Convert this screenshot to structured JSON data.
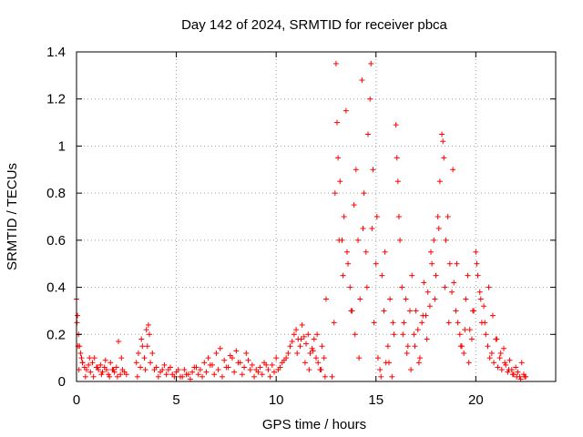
{
  "chart_data": {
    "type": "scatter",
    "title": "Day 142 of 2024, SRMTID for receiver pbca",
    "xlabel": "GPS time / hours",
    "ylabel": "SRMTID / TECUs",
    "xlim": [
      0,
      24
    ],
    "ylim": [
      0,
      1.4
    ],
    "xticks": [
      0,
      5,
      10,
      15,
      20
    ],
    "xtick_labels": [
      "0",
      "5",
      "10",
      "15",
      "20"
    ],
    "yticks": [
      0,
      0.2,
      0.4,
      0.6,
      0.8,
      1.0,
      1.2,
      1.4
    ],
    "ytick_labels": [
      "0",
      "0.2",
      "0.4",
      "0.6",
      "0.8",
      "1",
      "1.2",
      "1.4"
    ],
    "grid": true,
    "marker": "+",
    "color": "#ff0000",
    "series": [
      {
        "name": "SRMTID",
        "x": [
          0.0,
          0.05,
          0.1,
          0.15,
          0.2,
          0.25,
          0.3,
          0.4,
          0.5,
          0.6,
          0.7,
          0.8,
          0.9,
          1.0,
          1.1,
          1.2,
          1.3,
          1.4,
          1.5,
          1.6,
          1.7,
          1.8,
          1.9,
          2.0,
          2.1,
          2.2,
          2.3,
          2.4,
          2.5,
          3.0,
          3.1,
          3.2,
          3.3,
          3.4,
          3.5,
          3.6,
          3.7,
          3.8,
          3.9,
          4.0,
          4.2,
          4.4,
          4.6,
          4.8,
          5.0,
          5.2,
          5.4,
          5.6,
          5.8,
          6.0,
          6.2,
          6.4,
          6.6,
          6.8,
          7.0,
          7.2,
          7.4,
          7.6,
          7.8,
          8.0,
          8.2,
          8.4,
          8.6,
          8.8,
          9.0,
          9.2,
          9.4,
          9.6,
          9.8,
          10.0,
          10.2,
          10.4,
          10.6,
          10.8,
          10.9,
          11.0,
          11.1,
          11.2,
          11.3,
          11.4,
          11.5,
          11.6,
          11.7,
          11.8,
          11.9,
          12.0,
          12.1,
          12.2,
          12.3,
          12.4,
          12.5,
          12.8,
          12.9,
          13.0,
          13.05,
          13.1,
          13.2,
          13.3,
          13.4,
          13.5,
          13.6,
          13.7,
          13.8,
          13.9,
          14.0,
          14.1,
          14.2,
          14.3,
          14.4,
          14.5,
          14.6,
          14.7,
          14.75,
          14.8,
          14.9,
          15.0,
          15.1,
          15.2,
          15.3,
          15.4,
          15.5,
          15.6,
          15.7,
          15.8,
          15.9,
          16.0,
          16.05,
          16.1,
          16.2,
          16.3,
          16.4,
          16.5,
          16.6,
          16.7,
          16.8,
          16.9,
          17.0,
          17.1,
          17.2,
          17.3,
          17.4,
          17.5,
          17.6,
          17.7,
          17.8,
          17.9,
          18.0,
          18.1,
          18.2,
          18.3,
          18.35,
          18.4,
          18.5,
          18.6,
          18.7,
          18.8,
          18.9,
          19.0,
          19.1,
          19.2,
          19.3,
          19.4,
          19.5,
          19.6,
          19.7,
          19.8,
          19.9,
          20.0,
          20.1,
          20.2,
          20.3,
          20.4,
          20.5,
          20.6,
          20.7,
          20.8,
          20.9,
          21.0,
          21.1,
          21.2,
          21.3,
          21.4,
          21.5,
          21.6,
          21.7,
          21.8,
          21.9,
          22.0,
          22.1,
          22.2,
          22.3,
          22.4,
          22.5,
          0.02,
          0.08,
          0.12,
          0.3,
          0.45,
          0.65,
          0.85,
          1.05,
          1.25,
          1.45,
          1.65,
          1.85,
          2.05,
          2.25,
          3.05,
          3.25,
          3.45,
          3.55,
          3.65,
          4.1,
          4.3,
          4.5,
          4.7,
          4.9,
          5.1,
          5.3,
          5.5,
          5.7,
          5.9,
          6.1,
          6.3,
          6.5,
          6.7,
          6.9,
          7.1,
          7.3,
          7.5,
          7.7,
          7.9,
          8.1,
          8.3,
          8.5,
          8.7,
          8.9,
          9.1,
          9.3,
          9.5,
          9.7,
          9.9,
          10.1,
          10.3,
          10.5,
          10.7,
          11.05,
          11.25,
          11.45,
          11.65,
          11.85,
          12.05,
          12.25,
          12.45,
          12.95,
          13.15,
          13.35,
          13.55,
          13.75,
          13.95,
          14.15,
          14.35,
          14.55,
          14.85,
          15.05,
          15.25,
          15.45,
          15.65,
          15.85,
          16.15,
          16.35,
          16.55,
          16.75,
          16.95,
          17.15,
          17.35,
          17.55,
          17.75,
          17.95,
          18.15,
          18.45,
          18.65,
          18.85,
          19.05,
          19.25,
          19.45,
          19.65,
          19.85,
          20.05,
          20.25,
          20.45,
          20.65,
          20.85,
          21.05,
          21.25,
          21.45,
          21.65,
          21.85,
          22.05,
          22.25,
          22.45
        ],
        "y": [
          0.35,
          0.28,
          0.2,
          0.15,
          0.12,
          0.1,
          0.08,
          0.06,
          0.05,
          0.07,
          0.04,
          0.08,
          0.1,
          0.06,
          0.05,
          0.07,
          0.04,
          0.06,
          0.05,
          0.03,
          0.08,
          0.05,
          0.04,
          0.06,
          0.17,
          0.03,
          0.05,
          0.04,
          0.03,
          0.08,
          0.12,
          0.06,
          0.15,
          0.1,
          0.22,
          0.24,
          0.08,
          0.12,
          0.05,
          0.06,
          0.04,
          0.07,
          0.05,
          0.03,
          0.04,
          0.02,
          0.05,
          0.03,
          0.04,
          0.06,
          0.05,
          0.08,
          0.1,
          0.07,
          0.12,
          0.14,
          0.09,
          0.06,
          0.1,
          0.13,
          0.08,
          0.06,
          0.09,
          0.07,
          0.05,
          0.06,
          0.08,
          0.05,
          0.07,
          0.1,
          0.06,
          0.09,
          0.12,
          0.17,
          0.2,
          0.22,
          0.18,
          0.15,
          0.24,
          0.19,
          0.16,
          0.2,
          0.12,
          0.14,
          0.18,
          0.1,
          0.08,
          0.05,
          0.15,
          0.1,
          0.35,
          0.02,
          0.25,
          1.35,
          1.1,
          0.95,
          0.85,
          0.6,
          0.7,
          1.15,
          0.5,
          0.4,
          0.3,
          0.75,
          0.9,
          0.6,
          0.35,
          1.28,
          0.8,
          0.55,
          1.05,
          1.2,
          1.35,
          0.65,
          0.25,
          0.5,
          0.1,
          0.05,
          0.45,
          0.3,
          0.08,
          0.15,
          0.35,
          0.02,
          0.2,
          1.09,
          0.95,
          0.85,
          0.6,
          0.4,
          0.25,
          0.35,
          0.15,
          0.3,
          0.45,
          0.2,
          0.3,
          0.22,
          0.1,
          0.25,
          0.42,
          0.28,
          0.38,
          0.32,
          0.5,
          0.6,
          0.45,
          0.7,
          0.85,
          1.05,
          1.02,
          0.95,
          0.6,
          0.7,
          0.5,
          0.38,
          0.42,
          0.3,
          0.25,
          0.2,
          0.15,
          0.12,
          0.35,
          0.45,
          0.22,
          0.18,
          0.3,
          0.55,
          0.45,
          0.38,
          0.25,
          0.32,
          0.2,
          0.15,
          0.1,
          0.12,
          0.08,
          0.18,
          0.06,
          0.1,
          0.05,
          0.14,
          0.07,
          0.04,
          0.09,
          0.05,
          0.03,
          0.06,
          0.04,
          0.02,
          0.08,
          0.03,
          0.02,
          0.25,
          0.15,
          0.05,
          0.08,
          0.02,
          0.1,
          0.02,
          0.06,
          0.03,
          0.09,
          0.02,
          0.05,
          0.02,
          0.1,
          0.02,
          0.18,
          0.05,
          0.15,
          0.2,
          0.02,
          0.05,
          0.03,
          0.06,
          0.02,
          0.05,
          0.02,
          0.03,
          0.01,
          0.06,
          0.03,
          0.02,
          0.04,
          0.07,
          0.03,
          0.05,
          0.02,
          0.06,
          0.11,
          0.04,
          0.08,
          0.03,
          0.12,
          0.05,
          0.02,
          0.04,
          0.03,
          0.07,
          0.02,
          0.04,
          0.05,
          0.08,
          0.1,
          0.15,
          0.12,
          0.18,
          0.08,
          0.05,
          0.13,
          0.2,
          0.05,
          0.02,
          0.8,
          0.6,
          0.45,
          0.55,
          0.3,
          0.2,
          0.1,
          0.65,
          0.4,
          0.9,
          0.7,
          0.02,
          0.55,
          0.08,
          0.25,
          0.7,
          0.2,
          0.12,
          0.05,
          0.15,
          0.08,
          0.28,
          0.18,
          0.55,
          0.35,
          0.65,
          0.4,
          0.25,
          0.9,
          0.5,
          0.15,
          0.22,
          0.08,
          0.3,
          0.5,
          0.35,
          0.25,
          0.4,
          0.28,
          0.18,
          0.12,
          0.08,
          0.05,
          0.03,
          0.02,
          0.01,
          0.02
        ]
      }
    ]
  }
}
